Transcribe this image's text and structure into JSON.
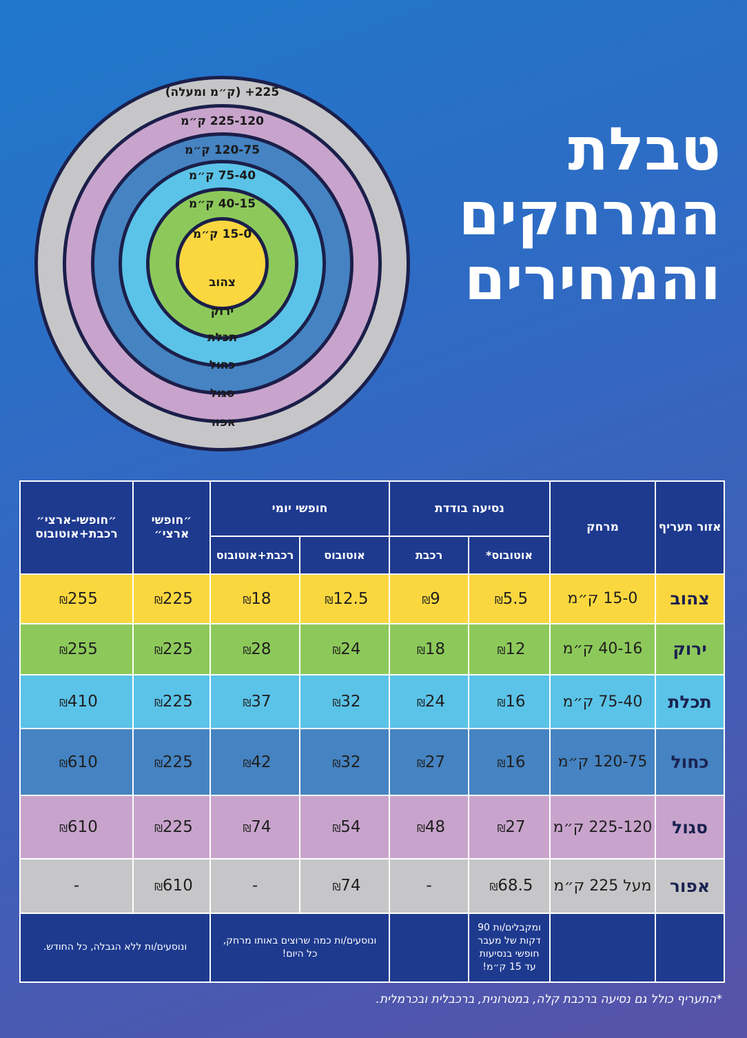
{
  "title": {
    "line1": "טבלת",
    "line2": "המרחקים",
    "line3": "והמחירים"
  },
  "rings": [
    {
      "range": "225+ (ק״מ ומעלה)",
      "name": "אפור",
      "color": "#c6c6c8"
    },
    {
      "range": "225-120 ק״מ",
      "name": "סגול",
      "color": "#c8a4cc"
    },
    {
      "range": "120-75 ק״מ",
      "name": "כחול",
      "color": "#4583c2"
    },
    {
      "range": "75-40 ק״מ",
      "name": "תכלת",
      "color": "#5bc3e8"
    },
    {
      "range": "40-15 ק״מ",
      "name": "ירוק",
      "color": "#8dc95a"
    },
    {
      "range": "15-0 ק״מ",
      "name": "צהוב",
      "color": "#fbd73f"
    }
  ],
  "table": {
    "headers": {
      "zone": "אזור תעריף",
      "distance": "מרחק",
      "single": "נסיעה בודדת",
      "daily": "חופשי יומי",
      "monthly": "״חופשי ארצי״",
      "monthly_combo": "״חופשי-ארצי״ רכבת+אוטובוס",
      "single_bus": "אוטובוס*",
      "single_train": "רכבת",
      "daily_bus": "אוטובוס",
      "daily_combo": "רכבת+אוטובוס"
    },
    "currency": "₪",
    "rows": [
      {
        "zone": "צהוב",
        "distance": "15-0 ק״מ",
        "color": "#fbd73f",
        "values": [
          "5.5",
          "9",
          "12.5",
          "18",
          "225",
          "255"
        ]
      },
      {
        "zone": "ירוק",
        "distance": "40-16 ק״מ",
        "color": "#8dc95a",
        "values": [
          "12",
          "18",
          "24",
          "28",
          "225",
          "255"
        ]
      },
      {
        "zone": "תכלת",
        "distance": "75-40 ק״מ",
        "color": "#5bc3e8",
        "values": [
          "16",
          "24",
          "32",
          "37",
          "225",
          "410"
        ]
      },
      {
        "zone": "כחול",
        "distance": "120-75 ק״מ",
        "color": "#4583c2",
        "values": [
          "16",
          "27",
          "32",
          "42",
          "225",
          "610"
        ]
      },
      {
        "zone": "סגול",
        "distance": "225-120 ק״מ",
        "color": "#c8a4cc",
        "values": [
          "27",
          "48",
          "54",
          "74",
          "225",
          "610"
        ]
      },
      {
        "zone": "אפור",
        "distance": "מעל 225 ק״מ",
        "color": "#c6c6c8",
        "values": [
          "68.5",
          "-",
          "74",
          "-",
          "610",
          "-"
        ]
      }
    ],
    "notes": {
      "single_bus": "ומקבלים/ות 90 דקות של מעבר חופשי בנסיעות עד 15 ק״מ!",
      "daily": "ונוסעים/ות כמה שרוצים באותו מרחק, כל היום!",
      "monthly": "ונוסעים/ות ללא הגבלה, כל החודש."
    }
  },
  "footnote": "*התעריף כולל גם נסיעה ברכבת קלה, במטרונית, ברכבלית ובכרמלית."
}
